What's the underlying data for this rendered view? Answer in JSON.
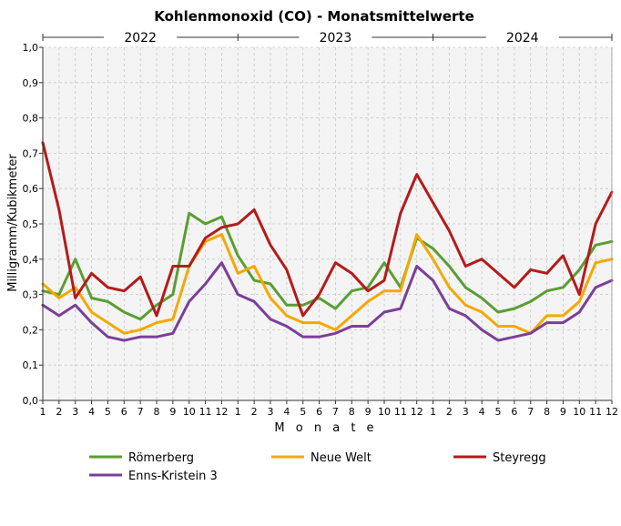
{
  "chart_data": {
    "type": "line",
    "title": "Kohlenmonoxid (CO) - Monatsmittelwerte",
    "xlabel": "M o n a t e",
    "ylabel": "Milligramm/Kubikmeter",
    "ylim": [
      0,
      1
    ],
    "yticks": [
      "0,0",
      "0,1",
      "0,2",
      "0,3",
      "0,4",
      "0,5",
      "0,6",
      "0,7",
      "0,8",
      "0,9",
      "1,0"
    ],
    "years": [
      "2022",
      "2023",
      "2024"
    ],
    "categories": [
      "1",
      "2",
      "3",
      "4",
      "5",
      "6",
      "7",
      "8",
      "9",
      "10",
      "11",
      "12",
      "1",
      "2",
      "3",
      "4",
      "5",
      "6",
      "7",
      "8",
      "9",
      "10",
      "11",
      "12",
      "1",
      "2",
      "3",
      "4",
      "5",
      "6",
      "7",
      "8",
      "9",
      "10",
      "11",
      "12"
    ],
    "grid": true,
    "legend_position": "bottom",
    "series": [
      {
        "name": "Römerberg",
        "color": "#5a9e32",
        "values": [
          0.31,
          0.3,
          0.4,
          0.29,
          0.28,
          0.25,
          0.23,
          0.27,
          0.3,
          0.53,
          0.5,
          0.52,
          0.41,
          0.34,
          0.33,
          0.27,
          0.27,
          0.29,
          0.26,
          0.31,
          0.32,
          0.39,
          0.32,
          0.46,
          0.43,
          0.38,
          0.32,
          0.29,
          0.25,
          0.26,
          0.28,
          0.31,
          0.32,
          0.37,
          0.44,
          0.45
        ]
      },
      {
        "name": "Neue Welt",
        "color": "#f5a800",
        "values": [
          0.33,
          0.29,
          0.32,
          0.25,
          0.22,
          0.19,
          0.2,
          0.22,
          0.23,
          0.38,
          0.45,
          0.47,
          0.36,
          0.38,
          0.29,
          0.24,
          0.22,
          0.22,
          0.2,
          0.24,
          0.28,
          0.31,
          0.31,
          0.47,
          0.4,
          0.32,
          0.27,
          0.25,
          0.21,
          0.21,
          0.19,
          0.24,
          0.24,
          0.28,
          0.39,
          0.4
        ]
      },
      {
        "name": "Steyregg",
        "color": "#b41b1b",
        "values": [
          0.73,
          0.54,
          0.29,
          0.36,
          0.32,
          0.31,
          0.35,
          0.24,
          0.38,
          0.38,
          0.46,
          0.49,
          0.5,
          0.54,
          0.44,
          0.37,
          0.24,
          0.3,
          0.39,
          0.36,
          0.31,
          0.34,
          0.53,
          0.64,
          0.56,
          0.48,
          0.38,
          0.4,
          0.36,
          0.32,
          0.37,
          0.36,
          0.41,
          0.3,
          0.5,
          0.59
        ]
      },
      {
        "name": "Enns-Kristein 3",
        "color": "#7b3f98",
        "values": [
          0.27,
          0.24,
          0.27,
          0.22,
          0.18,
          0.17,
          0.18,
          0.18,
          0.19,
          0.28,
          0.33,
          0.39,
          0.3,
          0.28,
          0.23,
          0.21,
          0.18,
          0.18,
          0.19,
          0.21,
          0.21,
          0.25,
          0.26,
          0.38,
          0.34,
          0.26,
          0.24,
          0.2,
          0.17,
          0.18,
          0.19,
          0.22,
          0.22,
          0.25,
          0.32,
          0.34
        ]
      }
    ]
  }
}
